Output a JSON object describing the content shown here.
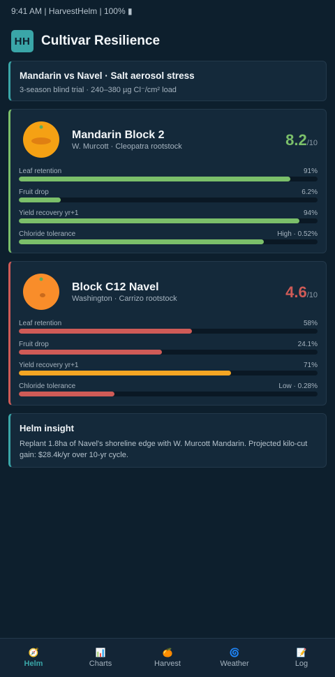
{
  "status_bar": {
    "text": "9:41 AM | HarvestHelm | 100% ▮"
  },
  "app": {
    "logo_text": "HH",
    "title": "Cultivar Resilience"
  },
  "summary": {
    "title": "Mandarin vs Navel · Salt aerosol stress",
    "subtitle": "3-season blind trial · 240–380 µg Cl⁻/cm² load"
  },
  "cultivars": [
    {
      "name": "Mandarin Block 2",
      "subtitle": "W. Murcott · Cleopatra rootstock",
      "score": "8.2",
      "score_denominator": "/10",
      "score_color": "#7bbf6a",
      "fruit_icon": "mandarin-fruit-icon",
      "metrics": [
        {
          "label": "Leaf retention",
          "value": "91%",
          "fill_pct": 91,
          "color": "#7bbf6a"
        },
        {
          "label": "Fruit drop",
          "value": "6.2%",
          "fill_pct": 14,
          "color": "#7bbf6a"
        },
        {
          "label": "Yield recovery yr+1",
          "value": "94%",
          "fill_pct": 94,
          "color": "#7bbf6a"
        },
        {
          "label": "Chloride tolerance",
          "value": "High · 0.52%",
          "fill_pct": 82,
          "color": "#7bbf6a"
        }
      ]
    },
    {
      "name": "Block C12 Navel",
      "subtitle": "Washington · Carrizo rootstock",
      "score": "4.6",
      "score_denominator": "/10",
      "score_color": "#cf5b57",
      "fruit_icon": "navel-orange-fruit-icon",
      "metrics": [
        {
          "label": "Leaf retention",
          "value": "58%",
          "fill_pct": 58,
          "color": "#cf5b57"
        },
        {
          "label": "Fruit drop",
          "value": "24.1%",
          "fill_pct": 48,
          "color": "#cf5b57"
        },
        {
          "label": "Yield recovery yr+1",
          "value": "71%",
          "fill_pct": 71,
          "color": "#f5a623"
        },
        {
          "label": "Chloride tolerance",
          "value": "Low · 0.28%",
          "fill_pct": 32,
          "color": "#cf5b57"
        }
      ]
    }
  ],
  "insight": {
    "title": "Helm insight",
    "body": "Replant 1.8ha of Navel's shoreline edge with W. Murcott Mandarin. Projected kilo-cut gain: $28.4k/yr over 10-yr cycle."
  },
  "tabs": [
    {
      "label": "Helm",
      "icon": "🧭",
      "icon_name": "compass-icon",
      "active": true
    },
    {
      "label": "Charts",
      "icon": "📊",
      "icon_name": "bar-chart-icon",
      "active": false
    },
    {
      "label": "Harvest",
      "icon": "🍊",
      "icon_name": "orange-icon",
      "active": false
    },
    {
      "label": "Weather",
      "icon": "🌀",
      "icon_name": "cyclone-icon",
      "active": false
    },
    {
      "label": "Log",
      "icon": "📝",
      "icon_name": "memo-icon",
      "active": false
    }
  ],
  "colors": {
    "accent": "#3aa6a8",
    "good": "#7bbf6a",
    "bad": "#cf5b57",
    "warn": "#f5a623",
    "background": "#0d1f2d",
    "card": "#14293a"
  }
}
